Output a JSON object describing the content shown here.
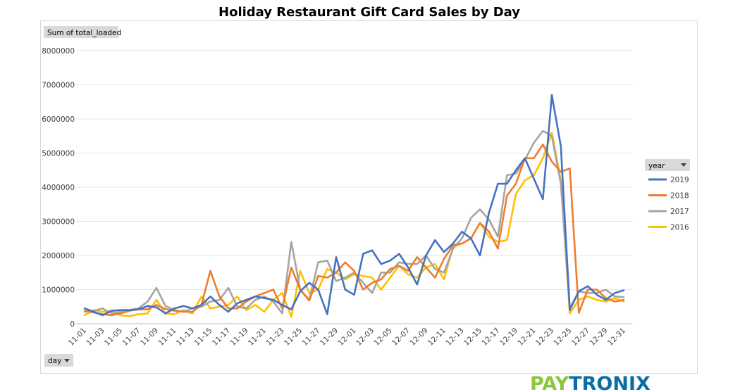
{
  "chart_data": {
    "type": "line",
    "title": "Holiday Restaurant Gift Card Sales by Day",
    "value_field_label": "Sum of total_loaded",
    "axis_field_label": "day",
    "legend_title": "year",
    "legend_position": "right",
    "ylim": [
      0,
      8000000
    ],
    "yticks": [
      "0",
      "1000000",
      "2000000",
      "3000000",
      "4000000",
      "5000000",
      "6000000",
      "7000000",
      "8000000"
    ],
    "grid": true,
    "x": [
      "11-01",
      "11-02",
      "11-03",
      "11-04",
      "11-05",
      "11-06",
      "11-07",
      "11-08",
      "11-09",
      "11-10",
      "11-11",
      "11-12",
      "11-13",
      "11-14",
      "11-15",
      "11-16",
      "11-17",
      "11-18",
      "11-19",
      "11-20",
      "11-21",
      "11-22",
      "11-23",
      "11-24",
      "11-25",
      "11-26",
      "11-27",
      "11-28",
      "11-29",
      "11-30",
      "12-01",
      "12-02",
      "12-03",
      "12-04",
      "12-05",
      "12-06",
      "12-07",
      "12-08",
      "12-09",
      "12-10",
      "12-11",
      "12-12",
      "12-13",
      "12-14",
      "12-15",
      "12-16",
      "12-17",
      "12-18",
      "12-19",
      "12-20",
      "12-21",
      "12-22",
      "12-23",
      "12-24",
      "12-25",
      "12-26",
      "12-27",
      "12-28",
      "12-29",
      "12-30",
      "12-31"
    ],
    "xticks_shown": [
      "11-01",
      "11-03",
      "11-05",
      "11-07",
      "11-09",
      "11-11",
      "11-13",
      "11-15",
      "11-17",
      "11-19",
      "11-21",
      "11-23",
      "11-25",
      "11-27",
      "11-29",
      "12-01",
      "12-03",
      "12-05",
      "12-07",
      "12-09",
      "12-11",
      "12-13",
      "12-15",
      "12-17",
      "12-19",
      "12-21",
      "12-23",
      "12-25",
      "12-27",
      "12-29",
      "12-31"
    ],
    "series": [
      {
        "name": "2019",
        "color": "#4472c4",
        "values": [
          450000,
          350000,
          250000,
          380000,
          400000,
          400000,
          420000,
          520000,
          480000,
          300000,
          450000,
          520000,
          450000,
          550000,
          800000,
          550000,
          350000,
          600000,
          700000,
          800000,
          750000,
          700000,
          550000,
          420000,
          950000,
          1200000,
          1000000,
          280000,
          1950000,
          1000000,
          850000,
          2050000,
          2150000,
          1750000,
          1850000,
          2050000,
          1650000,
          1150000,
          2000000,
          2450000,
          2100000,
          2350000,
          2700000,
          2500000,
          2000000,
          3250000,
          4100000,
          4100000,
          4500000,
          4850000,
          4250000,
          3650000,
          6700000,
          5200000,
          400000,
          950000,
          1100000,
          850000,
          700000,
          900000,
          980000
        ]
      },
      {
        "name": "2018",
        "color": "#ed7d31",
        "values": [
          380000,
          330000,
          280000,
          250000,
          300000,
          380000,
          420000,
          420000,
          550000,
          430000,
          380000,
          350000,
          350000,
          550000,
          1550000,
          800000,
          450000,
          450000,
          650000,
          800000,
          900000,
          1000000,
          450000,
          1650000,
          1000000,
          680000,
          1400000,
          1350000,
          1500000,
          1800000,
          1550000,
          1000000,
          1200000,
          1300000,
          1600000,
          1700000,
          1550000,
          1950000,
          1650000,
          1350000,
          1900000,
          2300000,
          2350000,
          2500000,
          2950000,
          2700000,
          2200000,
          3750000,
          4100000,
          4850000,
          4850000,
          5250000,
          4750000,
          4450000,
          4550000,
          320000,
          1000000,
          1000000,
          750000,
          650000,
          700000
        ]
      },
      {
        "name": "2017",
        "color": "#a5a5a5",
        "values": [
          350000,
          380000,
          450000,
          300000,
          350000,
          400000,
          450000,
          650000,
          1050000,
          520000,
          400000,
          350000,
          450000,
          500000,
          650000,
          700000,
          1050000,
          500000,
          450000,
          700000,
          800000,
          650000,
          300000,
          2400000,
          1000000,
          700000,
          1800000,
          1850000,
          1250000,
          1350000,
          1500000,
          1200000,
          900000,
          1500000,
          1500000,
          1800000,
          1750000,
          1750000,
          2000000,
          1600000,
          1500000,
          2200000,
          2500000,
          3100000,
          3350000,
          3050000,
          2550000,
          4350000,
          4400000,
          4800000,
          5300000,
          5650000,
          5500000,
          4100000,
          450000,
          950000,
          900000,
          900000,
          1000000,
          800000,
          780000
        ]
      },
      {
        "name": "2016",
        "color": "#ffc000",
        "values": [
          250000,
          400000,
          350000,
          380000,
          250000,
          220000,
          280000,
          300000,
          700000,
          300000,
          280000,
          400000,
          300000,
          800000,
          450000,
          500000,
          550000,
          800000,
          400000,
          550000,
          350000,
          700000,
          900000,
          200000,
          1550000,
          900000,
          1000000,
          1600000,
          1500000,
          1300000,
          1450000,
          1400000,
          1350000,
          1000000,
          1350000,
          1700000,
          1450000,
          1350000,
          1650000,
          1750000,
          1300000,
          2250000,
          2350000,
          2500000,
          2950000,
          2550000,
          2400000,
          2450000,
          3800000,
          4200000,
          4350000,
          4850000,
          5600000,
          4200000,
          300000,
          700000,
          800000,
          700000,
          650000,
          750000,
          650000
        ]
      }
    ]
  },
  "logo": {
    "part1": "PAY",
    "part2": "TRONIX"
  }
}
